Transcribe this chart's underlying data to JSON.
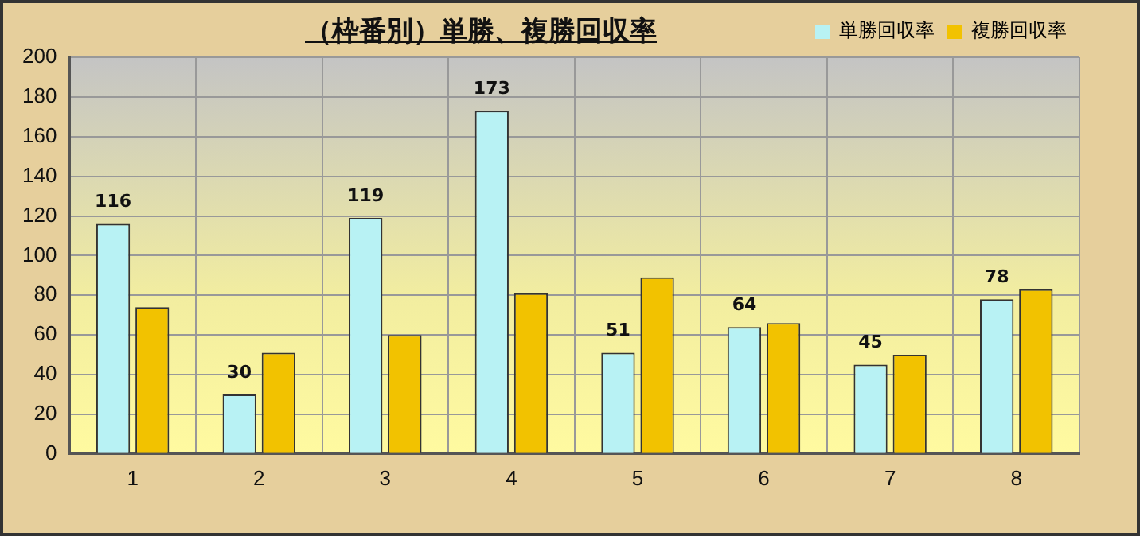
{
  "chart_data": {
    "type": "bar",
    "title": "（枠番別）単勝、複勝回収率",
    "categories": [
      "1",
      "2",
      "3",
      "4",
      "5",
      "6",
      "7",
      "8"
    ],
    "series": [
      {
        "name": "単勝回収率",
        "color": "#b8f2f4",
        "values": [
          116,
          30,
          119,
          173,
          51,
          64,
          45,
          78
        ],
        "value_labels": [
          "116",
          "30",
          "119",
          "173",
          "51",
          "64",
          "45",
          "78"
        ]
      },
      {
        "name": "複勝回収率",
        "color": "#f2c200",
        "values": [
          74,
          51,
          60,
          81,
          89,
          66,
          50,
          83
        ]
      }
    ],
    "ylim": [
      0,
      200
    ],
    "yticks": [
      0,
      20,
      40,
      60,
      80,
      100,
      120,
      140,
      160,
      180,
      200
    ],
    "grid": true,
    "legend": "top right"
  }
}
